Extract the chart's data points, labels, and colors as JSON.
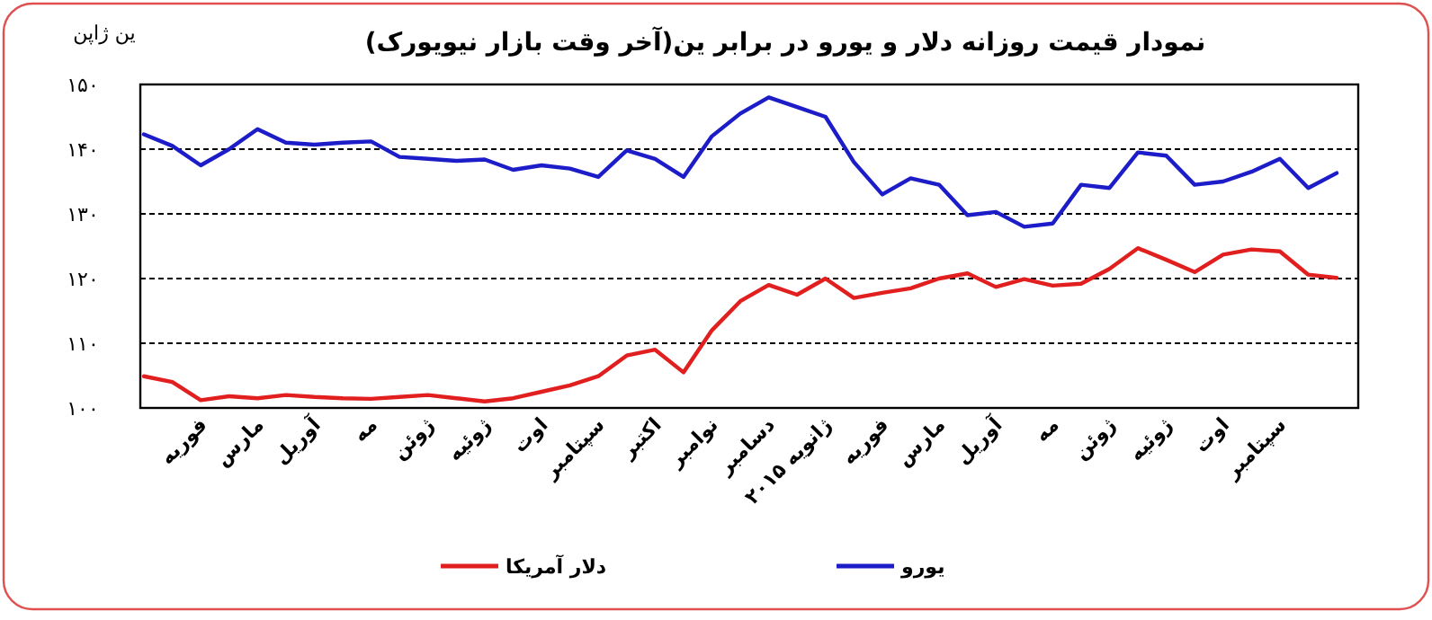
{
  "chart_data": {
    "type": "line",
    "title": "نمودار قیمت روزانه دلار و یورو در برابر ین(آخر وقت بازار نیویورک)",
    "ylabel": "ین ژاپن",
    "categories": [
      null,
      null,
      "فوریه",
      null,
      "مارس",
      null,
      "آوریل",
      null,
      "مه",
      null,
      "ژوئن",
      null,
      "ژوئیه",
      null,
      "اوت",
      null,
      "سپتامبر",
      null,
      "اکتبر",
      null,
      "نوامبر",
      null,
      "دسامبر",
      null,
      "ژانویه ۲۰۱۵",
      null,
      "فوریه",
      null,
      "مارس",
      null,
      "آوریل",
      null,
      "مه",
      null,
      "ژوئن",
      null,
      "ژوئیه",
      null,
      "اوت",
      null,
      "سپتامبر",
      null,
      null
    ],
    "ylim": [
      100,
      150
    ],
    "yticks": [
      {
        "value": 100,
        "label": "۱۰۰"
      },
      {
        "value": 110,
        "label": "۱۱۰"
      },
      {
        "value": 120,
        "label": "۱۲۰"
      },
      {
        "value": 130,
        "label": "۱۳۰"
      },
      {
        "value": 140,
        "label": "۱۴۰"
      },
      {
        "value": 150,
        "label": "۱۵۰"
      }
    ],
    "grid": "y",
    "legend": "bottom",
    "line_style": "solid",
    "marker": "none",
    "series": [
      {
        "name": "دلار آمریکا",
        "color": "#e21f1f",
        "values": [
          104.9,
          104,
          101.2,
          101.8,
          101.5,
          102,
          101.7,
          101.5,
          101.4,
          101.7,
          102,
          101.5,
          101,
          101.5,
          102.5,
          103.5,
          104.9,
          108.1,
          109,
          105.5,
          112,
          116.5,
          119,
          117.5,
          120,
          117,
          117.8,
          118.5,
          120,
          120.8,
          118.7,
          119.9,
          118.9,
          119.2,
          121.5,
          124.7,
          122.9,
          121,
          123.7,
          124.5,
          124.2,
          120.6,
          120.1
        ]
      },
      {
        "name": "یورو",
        "color": "#1c1cc8",
        "values": [
          142.3,
          140.5,
          137.5,
          140,
          143.1,
          141,
          140.7,
          141,
          141.2,
          138.8,
          138.5,
          138.2,
          138.4,
          136.8,
          137.5,
          137,
          135.7,
          139.8,
          138.5,
          135.7,
          142,
          145.5,
          148,
          146.5,
          145,
          138,
          133,
          135.5,
          134.5,
          129.8,
          130.3,
          128,
          128.5,
          134.5,
          134,
          139.5,
          139,
          134.5,
          135,
          136.5,
          138.5,
          134,
          136.3
        ]
      }
    ]
  }
}
